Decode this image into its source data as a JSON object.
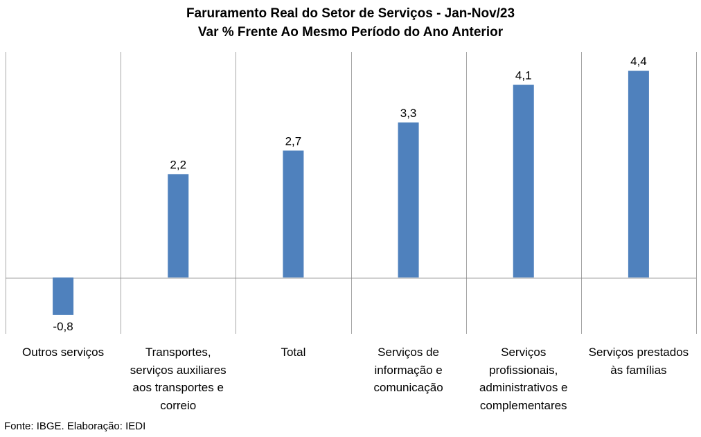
{
  "chart_data": {
    "type": "bar",
    "title": "Faruramento Real do Setor de Serviços - Jan-Nov/23",
    "subtitle": "Var % Frente Ao Mesmo Período do Ano Anterior",
    "categories": [
      "Outros serviços",
      "Transportes, serviços auxiliares aos transportes e correio",
      "Total",
      "Serviços de informação e comunicação",
      "Serviços profissionais, administrativos e complementares",
      "Serviços prestados às famílias"
    ],
    "values": [
      -0.8,
      2.2,
      2.7,
      3.3,
      4.1,
      4.4
    ],
    "value_labels": [
      "-0,8",
      "2,2",
      "2,7",
      "3,3",
      "4,1",
      "4,4"
    ],
    "category_lines": [
      [
        "Outros serviços"
      ],
      [
        "Transportes,",
        "serviços auxiliares",
        "aos transportes e",
        "correio"
      ],
      [
        "Total"
      ],
      [
        "Serviços de",
        "informação e",
        "comunicação"
      ],
      [
        "Serviços",
        "profissionais,",
        "administrativos e",
        "complementares"
      ],
      [
        "Serviços prestados",
        "às famílias"
      ]
    ],
    "ylim": [
      -1.2,
      4.8
    ],
    "xlabel": "",
    "ylabel": "",
    "bar_color": "#4F81BD",
    "grid": "vertical category separators",
    "legend": "none"
  },
  "footer": {
    "source": "Fonte: IBGE. Elaboração: IEDI"
  }
}
